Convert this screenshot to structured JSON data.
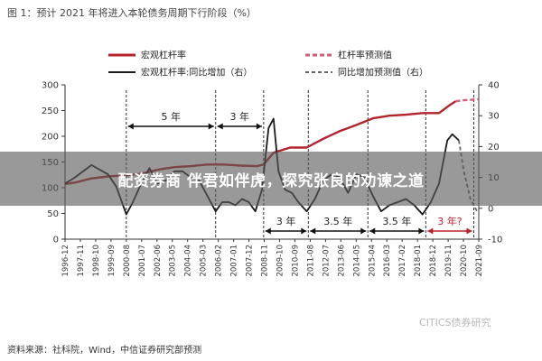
{
  "figure": {
    "title": "图 1：预计 2021 年将进入本轮债务周期下行阶段（%）",
    "source": "资料来源：社科院，Wind，中信证券研究部预测",
    "watermark": "CITICS债券研究"
  },
  "overlay": {
    "headline": "配资券商 伴君如伴虎，探究张良的劝谏之道"
  },
  "colors": {
    "leverage": "#b2232b",
    "leverage_forecast": "#d45a78",
    "yoy": "#1a1a1a",
    "yoy_forecast": "#666666"
  },
  "chart_data": {
    "type": "line",
    "title": "预计 2021 年将进入本轮债务周期下行阶段（%）",
    "x": [
      "1996-12",
      "1997-11",
      "1998-10",
      "1999-09",
      "2000-08",
      "2001-07",
      "2002-06",
      "2003-05",
      "2004-04",
      "2005-03",
      "2006-02",
      "2007-01",
      "2007-12",
      "2008-11",
      "2009-10",
      "2010-09",
      "2011-08",
      "2012-07",
      "2013-06",
      "2014-05",
      "2015-04",
      "2016-03",
      "2017-02",
      "2018-01",
      "2018-12",
      "2019-11",
      "2020-10",
      "2021-09"
    ],
    "y_left": {
      "range": [
        0,
        300
      ],
      "ticks": [
        "0",
        "50",
        "100",
        "150",
        "200",
        "250",
        "300"
      ]
    },
    "y_right": {
      "range": [
        -10,
        40
      ],
      "ticks": [
        "-10",
        "0",
        "10",
        "20",
        "30",
        "40"
      ]
    },
    "series": [
      {
        "name": "宏观杠杆率",
        "axis": "left",
        "style": "solid",
        "x": [
          1996.9,
          1997.5,
          1998.5,
          1999.5,
          2000.5,
          2001.5,
          2002.5,
          2003.5,
          2004.5,
          2005.5,
          2006.5,
          2007.5,
          2008.5,
          2008.9,
          2009.5,
          2010.5,
          2011.5,
          2012.5,
          2013.5,
          2014.5,
          2015.5,
          2016.5,
          2017.5,
          2018.5,
          2019.5,
          2020.2,
          2020.5
        ],
        "values": [
          107,
          110,
          118,
          122,
          124,
          127,
          135,
          140,
          142,
          145,
          145,
          143,
          142,
          145,
          168,
          178,
          178,
          195,
          210,
          222,
          235,
          240,
          242,
          245,
          245,
          262,
          268
        ]
      },
      {
        "name": "杠杆率预测值",
        "axis": "left",
        "style": "dashed",
        "x": [
          2020.5,
          2021.0,
          2021.5,
          2021.9
        ],
        "values": [
          268,
          270,
          271,
          272
        ]
      },
      {
        "name": "宏观杠杆率:同比增加（右）",
        "axis": "right",
        "style": "solid",
        "x": [
          1996.9,
          1997.5,
          1998.5,
          1999.5,
          2000.0,
          2000.6,
          2001.0,
          2001.5,
          2002.0,
          2002.5,
          2003.0,
          2003.5,
          2004.0,
          2004.5,
          2005.0,
          2005.5,
          2006.0,
          2006.4,
          2006.8,
          2007.2,
          2007.6,
          2008.0,
          2008.4,
          2008.8,
          2009.2,
          2009.5,
          2009.8,
          2010.2,
          2010.6,
          2011.0,
          2011.5,
          2012.0,
          2012.5,
          2013.0,
          2013.5,
          2014.0,
          2014.5,
          2015.0,
          2015.5,
          2016.0,
          2016.5,
          2017.0,
          2017.5,
          2018.0,
          2018.5,
          2019.0,
          2019.5,
          2020.0,
          2020.3,
          2020.7
        ],
        "values": [
          8,
          10,
          14,
          11,
          7,
          -2,
          2,
          8,
          13,
          8,
          9,
          12,
          12,
          10,
          9,
          4,
          -1,
          2,
          2,
          1,
          3,
          2,
          -1,
          6,
          26,
          29,
          12,
          6,
          5,
          2,
          -1,
          3,
          9,
          11,
          10,
          5,
          11,
          10,
          4,
          -1,
          1,
          2,
          3,
          1,
          -2,
          2,
          8,
          22,
          24,
          22
        ]
      },
      {
        "name": "同比增加预测值（右）",
        "axis": "right",
        "style": "dashed",
        "x": [
          2020.7,
          2021.0,
          2021.4,
          2021.8
        ],
        "values": [
          22,
          12,
          3,
          -1
        ]
      }
    ],
    "annotations": [
      "5 年",
      "3 年",
      "3 年",
      "3.5 年",
      "3.5 年",
      "3 年?"
    ],
    "legend_position": "top",
    "grid": false
  }
}
